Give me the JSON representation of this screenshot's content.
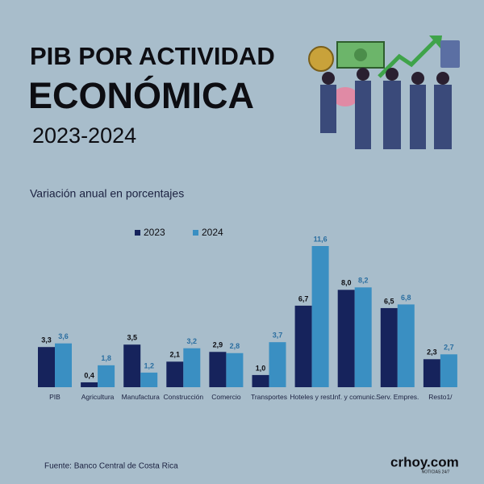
{
  "chart_data": {
    "type": "bar",
    "title": "PIB POR ACTIVIDAD",
    "title_line2": "ECONÓMICA",
    "period": "2023-2024",
    "subtitle": "Variación anual en porcentajes",
    "source": "Fuente: Banco Central de Costa Rica",
    "brand": "crhoy.com",
    "brand_tagline": "NOTICIAS 24/7",
    "categories": [
      "PIB",
      "Agricultura",
      "Manufactura",
      "Construcción",
      "Comercio",
      "Transportes",
      "Hoteles y rest.",
      "Inf. y comunic.",
      "Serv. Empres.",
      "Resto1/"
    ],
    "series": [
      {
        "name": "2023",
        "color": "#16235c",
        "values": [
          3.3,
          0.4,
          3.5,
          2.1,
          2.9,
          1.0,
          6.7,
          8.0,
          6.5,
          2.3
        ],
        "value_labels": [
          "3,3",
          "0,4",
          "3,5",
          "2,1",
          "2,9",
          "1,0",
          "6,7",
          "8,0",
          "6,5",
          "2,3"
        ]
      },
      {
        "name": "2024",
        "color": "#3a8fc2",
        "values": [
          3.6,
          1.8,
          1.2,
          3.2,
          2.8,
          3.7,
          11.6,
          8.2,
          6.8,
          2.7
        ],
        "value_labels": [
          "3,6",
          "1,8",
          "1,2",
          "3,2",
          "2,8",
          "3,7",
          "11,6",
          "8,2",
          "6,8",
          "2,7"
        ]
      }
    ]
  }
}
